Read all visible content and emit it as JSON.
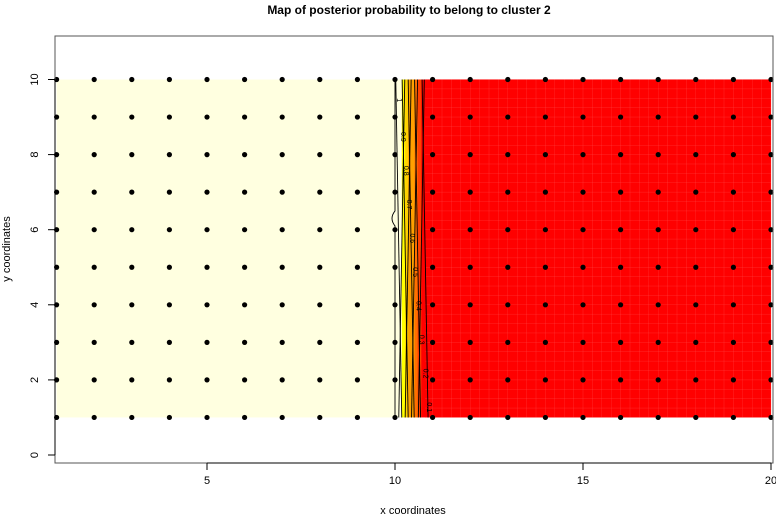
{
  "chart_data": {
    "type": "heatmap",
    "title": "Map of posterior probability to belong to cluster  2",
    "xlabel": "x coordinates",
    "ylabel": "y coordinates",
    "xlim": [
      1,
      20
    ],
    "ylim": [
      0,
      11
    ],
    "xticks": [
      5,
      10,
      15,
      20
    ],
    "yticks": [
      0,
      2,
      4,
      6,
      8,
      10
    ],
    "grid_points": {
      "x": [
        1,
        2,
        3,
        4,
        5,
        6,
        7,
        8,
        9,
        10,
        11,
        12,
        13,
        14,
        15,
        16,
        17,
        18,
        19,
        20
      ],
      "y": [
        1,
        2,
        3,
        4,
        5,
        6,
        7,
        8,
        9,
        10
      ]
    },
    "field": {
      "low_region": {
        "x": [
          1,
          10
        ],
        "probability": 1
      },
      "transition": {
        "x": [
          10,
          11
        ]
      },
      "high_region": {
        "x": [
          11,
          20
        ],
        "probability": 0
      }
    },
    "contours": [
      {
        "level": "1",
        "x": 10.0
      },
      {
        "level": "0.9",
        "x": 10.1
      },
      {
        "level": "0.8",
        "x": 10.18
      },
      {
        "level": "0.7",
        "x": 10.27
      },
      {
        "level": "0.6",
        "x": 10.35
      },
      {
        "level": "0.5",
        "x": 10.43
      },
      {
        "level": "0.4",
        "x": 10.52
      },
      {
        "level": "0.3",
        "x": 10.6
      },
      {
        "level": "0.2",
        "x": 10.7
      },
      {
        "level": "0.1",
        "x": 10.8
      }
    ],
    "colors": {
      "prob_1": "#ffffe0",
      "prob_0": "#ff0000",
      "mid": [
        "#ffff00",
        "#ffd000",
        "#ffa000",
        "#ff7000",
        "#ff4000"
      ]
    },
    "grid": false,
    "legend": "none"
  }
}
